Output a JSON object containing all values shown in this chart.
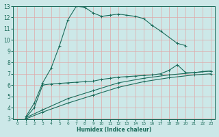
{
  "bg_color": "#cce8e8",
  "grid_color": "#dfa8a8",
  "line_color": "#1a6b5a",
  "xlabel": "Humidex (Indice chaleur)",
  "xlim": [
    -0.5,
    23.5
  ],
  "ylim": [
    3,
    13
  ],
  "xticks": [
    0,
    1,
    2,
    3,
    4,
    5,
    6,
    7,
    8,
    9,
    10,
    11,
    12,
    13,
    14,
    15,
    16,
    17,
    18,
    19,
    20,
    21,
    22,
    23
  ],
  "yticks": [
    3,
    4,
    5,
    6,
    7,
    8,
    9,
    10,
    11,
    12,
    13
  ],
  "curves": [
    {
      "x": [
        1,
        2,
        3,
        4,
        5,
        6,
        7,
        8,
        9,
        10,
        11,
        12,
        13,
        14,
        15,
        16,
        17,
        19,
        20
      ],
      "y": [
        3.2,
        4.4,
        6.2,
        7.5,
        9.5,
        11.8,
        13.0,
        12.9,
        12.4,
        12.1,
        12.2,
        12.3,
        12.2,
        12.1,
        11.9,
        11.3,
        10.8,
        9.7,
        9.5
      ]
    },
    {
      "x": [
        1,
        2,
        3,
        4,
        5,
        6,
        7,
        8,
        9,
        10,
        11,
        12,
        13,
        14,
        15,
        16,
        17,
        18,
        19,
        20,
        21,
        22,
        23
      ],
      "y": [
        3.1,
        4.0,
        6.0,
        6.1,
        6.15,
        6.2,
        6.25,
        6.3,
        6.35,
        6.5,
        6.6,
        6.7,
        6.75,
        6.8,
        6.85,
        6.9,
        7.0,
        7.3,
        7.8,
        7.1,
        7.1,
        7.2,
        7.25
      ]
    },
    {
      "x": [
        1,
        3,
        6,
        9,
        12,
        15,
        18,
        21,
        23
      ],
      "y": [
        3.1,
        3.8,
        4.8,
        5.5,
        6.2,
        6.6,
        6.9,
        7.1,
        7.25
      ]
    },
    {
      "x": [
        1,
        3,
        6,
        9,
        12,
        15,
        18,
        21,
        23
      ],
      "y": [
        3.0,
        3.6,
        4.4,
        5.1,
        5.8,
        6.3,
        6.65,
        6.9,
        7.0
      ]
    }
  ]
}
